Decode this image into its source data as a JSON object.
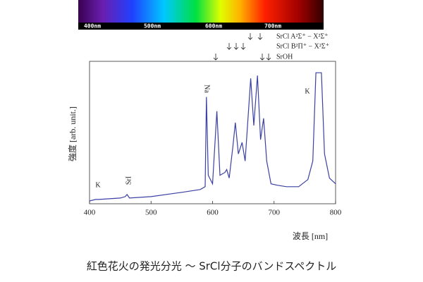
{
  "chart_data": {
    "type": "line",
    "spectrum_labels": [
      "400nm",
      "500nm",
      "600nm",
      "700nm"
    ],
    "band_labels": [
      "SrCl A²Σ⁺ − X²Σ⁺",
      "SrCl B²Π⁺ − X²Σ⁺",
      "SrOH"
    ],
    "peak_labels": [
      "K",
      "SrI",
      "Na",
      "K"
    ],
    "y_label": "強度 [arb. unit.]",
    "x_label": "波長 [nm]",
    "caption": "紅色花火の発光分光 ～ SrCl分子のバンドスペクトル",
    "color": "#3b40a3",
    "x": [
      400,
      410,
      415,
      450,
      458,
      461,
      465,
      500,
      550,
      580,
      588,
      590,
      593,
      600,
      607,
      612,
      620,
      623,
      627,
      633,
      637,
      642,
      648,
      653,
      662,
      667,
      673,
      678,
      683,
      688,
      695,
      705,
      720,
      740,
      755,
      763,
      768,
      777,
      782,
      790,
      800
    ],
    "values": [
      2,
      3,
      3,
      4,
      5,
      6.5,
      4,
      5,
      8,
      10,
      12,
      75,
      20,
      14,
      65,
      20,
      22,
      24,
      18,
      40,
      57,
      35,
      43,
      30,
      88,
      55,
      90,
      45,
      60,
      30,
      14,
      13,
      12,
      12,
      17,
      30,
      92,
      92,
      35,
      18,
      14
    ],
    "xlim": [
      400,
      800
    ],
    "xticks": [
      400,
      500,
      600,
      700,
      800
    ],
    "ylim": [
      0,
      100
    ]
  }
}
